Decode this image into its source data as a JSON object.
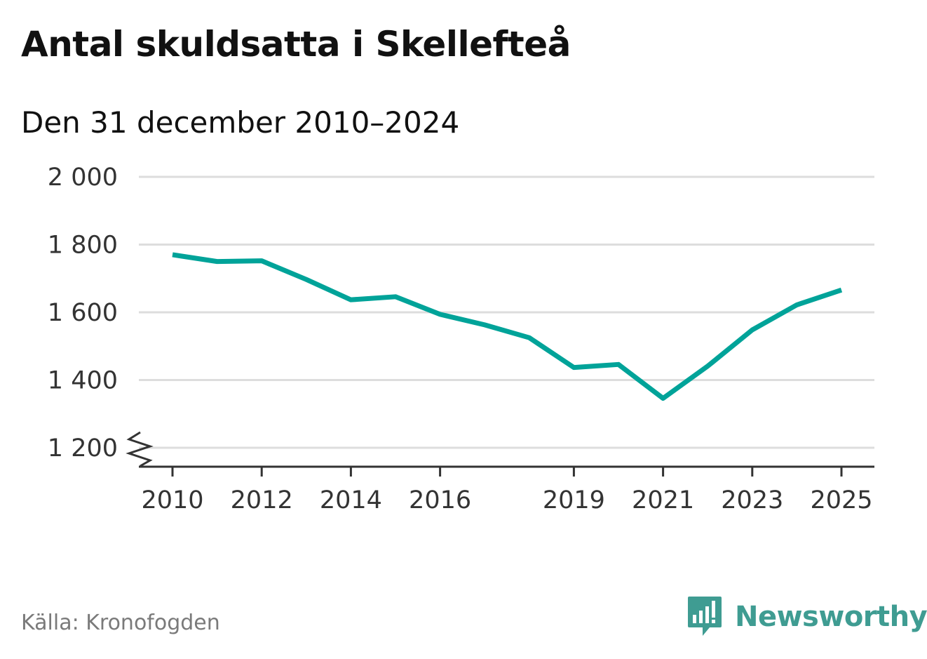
{
  "title": "Antal skuldsatta i Skellefteå",
  "subtitle": "Den 31 december 2010–2024",
  "source": "Källa: Kronofogden",
  "brand": {
    "name": "Newsworthy",
    "icon": "bar-chart-speech-bubble-icon",
    "color": "#3f9c92"
  },
  "chart_data": {
    "type": "line",
    "title": "Antal skuldsatta i Skellefteå",
    "subtitle": "Den 31 december 2010–2024",
    "xlabel": "",
    "ylabel": "",
    "x": [
      2010,
      2011,
      2012,
      2013,
      2014,
      2015,
      2016,
      2017,
      2018,
      2019,
      2020,
      2021,
      2022,
      2023,
      2024,
      2025
    ],
    "series": [
      {
        "values": [
          1770,
          1750,
          1752,
          1697,
          1637,
          1646,
          1594,
          1563,
          1525,
          1437,
          1446,
          1346,
          1441,
          1548,
          1622,
          1666
        ],
        "color": "#00a399"
      }
    ],
    "ylim": [
      1200,
      2000
    ],
    "xlim": [
      2010,
      2025
    ],
    "yticks": [
      1200,
      1400,
      1600,
      1800,
      2000
    ],
    "ytick_labels": [
      "1 200",
      "1 400",
      "1 600",
      "1 800",
      "2 000"
    ],
    "xticks": [
      2010,
      2012,
      2014,
      2016,
      2019,
      2021,
      2023,
      2025
    ],
    "xtick_labels": [
      "2010",
      "2012",
      "2014",
      "2016",
      "2019",
      "2021",
      "2023",
      "2025"
    ],
    "grid": "horizontal",
    "axis_break": true,
    "colors": {
      "line": "#00a399",
      "grid": "#dddddd",
      "axis": "#333333"
    }
  }
}
